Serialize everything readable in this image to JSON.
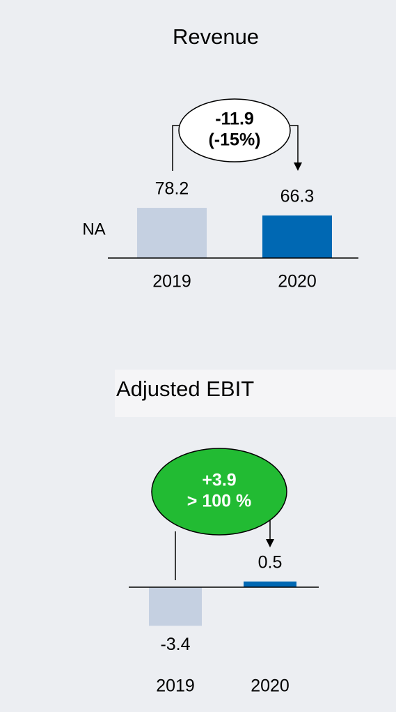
{
  "chart_data": [
    {
      "type": "bar",
      "title": "Revenue",
      "row_label": "NA",
      "categories": [
        "2019",
        "2020"
      ],
      "values": [
        78.2,
        66.3
      ],
      "colors": [
        "#c5d0e1",
        "#0068b3"
      ],
      "annotation": [
        "-11.9",
        "(-15%)"
      ],
      "annotation_fill": "#ffffff",
      "annotation_text_color": "#000000"
    },
    {
      "type": "bar",
      "title": "Adjusted EBIT",
      "categories": [
        "2019",
        "2020"
      ],
      "values": [
        -3.4,
        0.5
      ],
      "colors": [
        "#c5d0e1",
        "#0068b3"
      ],
      "annotation": [
        "+3.9",
        "> 100 %"
      ],
      "annotation_fill": "#22bb33",
      "annotation_text_color": "#ffffff"
    }
  ]
}
